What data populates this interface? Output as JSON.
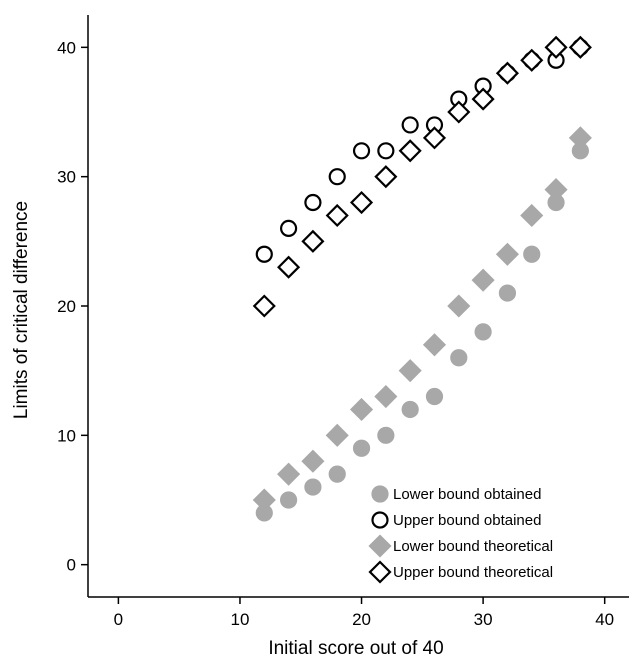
{
  "chart_data": {
    "type": "scatter",
    "title": "",
    "xlabel": "Initial score out of 40",
    "ylabel": "Limits of critical difference",
    "xlim": [
      -2.5,
      42
    ],
    "ylim": [
      -2.5,
      42.5
    ],
    "x_ticks": [
      0,
      10,
      20,
      30,
      40
    ],
    "y_ticks": [
      0,
      10,
      20,
      30,
      40
    ],
    "grid": false,
    "legend_position": "bottom-right",
    "series": [
      {
        "name": "Lower bound obtained",
        "marker": "circle",
        "fill": "#a8a8a8",
        "stroke": "#a8a8a8",
        "x": [
          12,
          14,
          16,
          18,
          20,
          22,
          24,
          26,
          28,
          30,
          32,
          34,
          36,
          38
        ],
        "y": [
          4,
          5,
          6,
          7,
          9,
          10,
          12,
          13,
          16,
          18,
          21,
          24,
          28,
          32
        ]
      },
      {
        "name": "Upper bound obtained",
        "marker": "circle",
        "fill": "none",
        "stroke": "#000000",
        "x": [
          12,
          14,
          16,
          18,
          20,
          22,
          24,
          26,
          28,
          30,
          32,
          34,
          36,
          38
        ],
        "y": [
          24,
          26,
          28,
          30,
          32,
          32,
          34,
          34,
          36,
          37,
          38,
          39,
          39,
          40
        ]
      },
      {
        "name": "Lower bound theoretical",
        "marker": "diamond",
        "fill": "#a8a8a8",
        "stroke": "#a8a8a8",
        "x": [
          12,
          14,
          16,
          18,
          20,
          22,
          24,
          26,
          28,
          30,
          32,
          34,
          36,
          38
        ],
        "y": [
          5,
          7,
          8,
          10,
          12,
          13,
          15,
          17,
          20,
          22,
          24,
          27,
          29,
          33
        ]
      },
      {
        "name": "Upper bound theoretical",
        "marker": "diamond",
        "fill": "#ffffff",
        "stroke": "#000000",
        "x": [
          12,
          14,
          16,
          18,
          20,
          22,
          24,
          26,
          28,
          30,
          32,
          34,
          36,
          38
        ],
        "y": [
          20,
          23,
          25,
          27,
          28,
          30,
          32,
          33,
          35,
          36,
          38,
          39,
          40,
          40
        ]
      }
    ]
  }
}
